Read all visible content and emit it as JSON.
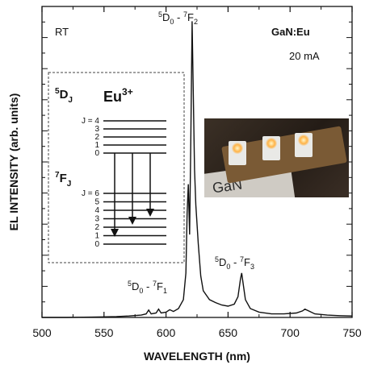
{
  "chart_data": {
    "type": "line",
    "title": "",
    "xlabel": "WAVELENGTH (nm)",
    "ylabel": "EL INTENSITY (arb. units)",
    "xlim": [
      500,
      750
    ],
    "ylim": [
      0,
      1.05
    ],
    "x_ticks": [
      "500",
      "550",
      "600",
      "650",
      "700",
      "750"
    ],
    "series": [
      {
        "name": "",
        "points": [
          [
            500,
            0.0
          ],
          [
            520,
            0.0
          ],
          [
            540,
            0.001
          ],
          [
            560,
            0.003
          ],
          [
            570,
            0.005
          ],
          [
            580,
            0.008
          ],
          [
            584,
            0.012
          ],
          [
            586,
            0.025
          ],
          [
            588,
            0.012
          ],
          [
            592,
            0.015
          ],
          [
            594,
            0.028
          ],
          [
            596,
            0.015
          ],
          [
            600,
            0.018
          ],
          [
            603,
            0.026
          ],
          [
            606,
            0.02
          ],
          [
            610,
            0.03
          ],
          [
            614,
            0.06
          ],
          [
            616,
            0.15
          ],
          [
            617,
            0.35
          ],
          [
            618,
            0.45
          ],
          [
            619,
            0.28
          ],
          [
            620,
            0.6
          ],
          [
            621,
            1.0
          ],
          [
            622,
            0.75
          ],
          [
            623,
            0.5
          ],
          [
            624,
            0.38
          ],
          [
            626,
            0.25
          ],
          [
            628,
            0.14
          ],
          [
            630,
            0.09
          ],
          [
            635,
            0.06
          ],
          [
            640,
            0.05
          ],
          [
            645,
            0.042
          ],
          [
            650,
            0.038
          ],
          [
            655,
            0.045
          ],
          [
            658,
            0.07
          ],
          [
            660,
            0.13
          ],
          [
            661,
            0.15
          ],
          [
            662,
            0.12
          ],
          [
            664,
            0.06
          ],
          [
            668,
            0.03
          ],
          [
            675,
            0.018
          ],
          [
            685,
            0.012
          ],
          [
            695,
            0.012
          ],
          [
            705,
            0.015
          ],
          [
            710,
            0.022
          ],
          [
            712,
            0.028
          ],
          [
            715,
            0.022
          ],
          [
            720,
            0.012
          ],
          [
            730,
            0.008
          ],
          [
            740,
            0.006
          ],
          [
            750,
            0.005
          ]
        ]
      }
    ],
    "annotations": {
      "rt": "RT",
      "sample": "GaN:Eu",
      "current": "20 mA",
      "peak_f2": {
        "prefix": "5",
        "d": "D",
        "d_sub": "0",
        "sep": " - ",
        "prefix2": "7",
        "f": "F",
        "f_sub": "2"
      },
      "peak_f1": {
        "prefix": "5",
        "d": "D",
        "d_sub": "0",
        "sep": " - ",
        "prefix2": "7",
        "f": "F",
        "f_sub": "1"
      },
      "peak_f3": {
        "prefix": "5",
        "d": "D",
        "d_sub": "0",
        "sep": " - ",
        "prefix2": "7",
        "f": "F",
        "f_sub": "3"
      }
    },
    "inset": {
      "ion": "Eu",
      "ion_sup": "3+",
      "upper_state": {
        "sup": "5",
        "letter": "D",
        "sub": "J"
      },
      "lower_state": {
        "sup": "7",
        "letter": "F",
        "sub": "J"
      },
      "upper_levels": [
        "J = 4",
        "3",
        "2",
        "1",
        "0"
      ],
      "lower_levels": [
        "J = 6",
        "5",
        "4",
        "3",
        "2",
        "1",
        "0"
      ]
    },
    "photo": {
      "caption": "GaN"
    }
  }
}
